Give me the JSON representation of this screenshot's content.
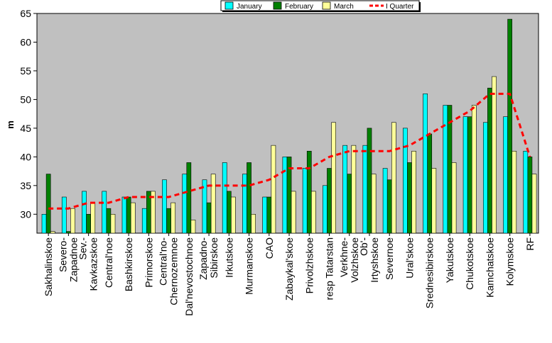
{
  "chart_data": {
    "type": "bar",
    "ylabel": "m",
    "ylim": [
      26.7,
      65
    ],
    "yticks": [
      30,
      35,
      40,
      45,
      50,
      55,
      60,
      65
    ],
    "grid": false,
    "legend_position": "top-right",
    "categories": [
      "Sakhalinskoe",
      "Severo-Zapadnoe",
      "Sev.-Kavkazskoe",
      "Central'noe",
      "Bashkirskoe",
      "Primorskoe",
      "Central'no-Chernozemnoe",
      "Dal'nevostochnoe",
      "Zapadno-Sibirskoe",
      "Irkutskoe",
      "Murmanskoe",
      "CAO",
      "Zabaykal'skoe",
      "Privolzhskoe",
      "resp Tatarstan",
      "Verkhne-Volzhskoe",
      "Ob'-Irtyshskoe",
      "Severnoe",
      "Ural'skoe",
      "Srednesibirskoe",
      "Yakutskoe",
      "Chukotskoe",
      "Kamchatskoe",
      "Kolymskoe",
      "RF"
    ],
    "series": [
      {
        "name": "January",
        "type": "bar",
        "color": "#00ffff",
        "values": [
          30,
          33,
          34,
          34,
          33,
          31,
          36,
          37,
          36,
          39,
          37,
          33,
          40,
          38,
          35,
          42,
          42,
          38,
          45,
          51,
          49,
          47,
          46,
          47,
          41
        ]
      },
      {
        "name": "February",
        "type": "bar",
        "color": "#008000",
        "values": [
          37,
          27,
          30,
          31,
          33,
          34,
          31,
          39,
          32,
          34,
          39,
          33,
          40,
          41,
          38,
          37,
          45,
          36,
          39,
          44,
          49,
          47,
          52,
          64,
          40
        ]
      },
      {
        "name": "March",
        "type": "bar",
        "color": "#ffff99",
        "values": [
          27,
          31,
          32,
          30,
          32,
          34,
          32,
          29,
          37,
          33,
          30,
          42,
          34,
          34,
          46,
          42,
          37,
          46,
          41,
          38,
          39,
          49,
          54,
          41,
          37
        ]
      },
      {
        "name": "I Quarter",
        "type": "line",
        "color": "#ff0000",
        "values": [
          31,
          31,
          32,
          32,
          33,
          33,
          33,
          34,
          35,
          35,
          35,
          36,
          38,
          38,
          40,
          41,
          41,
          41,
          42,
          44,
          46,
          48,
          51,
          51,
          40
        ]
      }
    ]
  }
}
